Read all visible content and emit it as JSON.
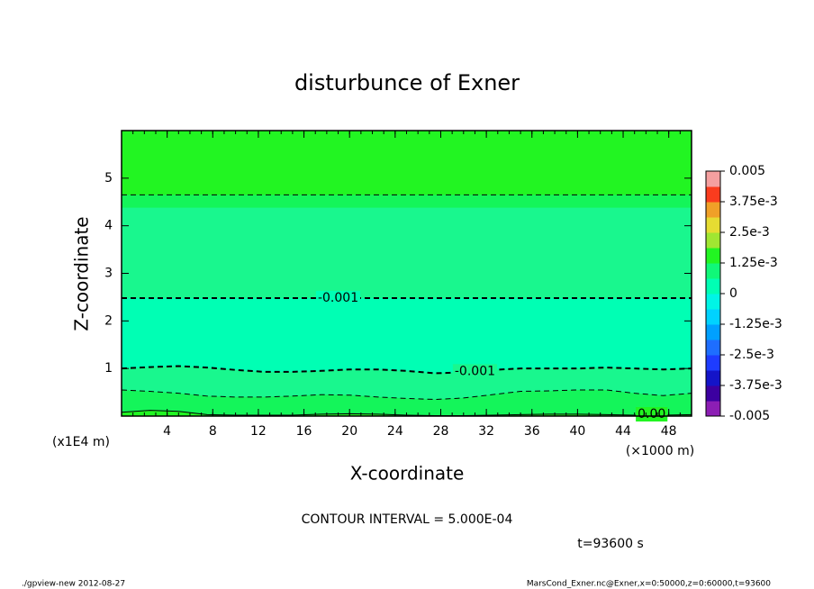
{
  "chart_data": {
    "type": "contour",
    "title": "disturbunce of Exner",
    "xlabel": "X-coordinate",
    "ylabel": "Z-coordinate",
    "xunit": "(×1000 m)",
    "yunit": "(x1E4 m)",
    "xlim": [
      0,
      50
    ],
    "ylim": [
      0,
      6
    ],
    "xticks": [
      4,
      8,
      12,
      16,
      20,
      24,
      28,
      32,
      36,
      40,
      44,
      48
    ],
    "yticks": [
      1,
      2,
      3,
      4,
      5
    ],
    "top_fill": "#22f522",
    "contours": [
      {
        "level": -0.0005,
        "line": "dashed",
        "width": 1,
        "fill": "#14f55a",
        "x": [
          0,
          50
        ],
        "y": [
          4.65,
          4.65
        ]
      },
      {
        "fill": "#19f78e",
        "x": [
          0,
          50
        ],
        "y": [
          4.38,
          4.38
        ]
      },
      {
        "level": -0.001,
        "label": "-0.001",
        "line": "dashed",
        "width": 2,
        "fill": "#00ffb4",
        "x": [
          0,
          50
        ],
        "y": [
          2.48,
          2.48
        ]
      },
      {
        "level": -0.001,
        "label": "-0.001",
        "line": "dashed",
        "width": 2,
        "fill": "#19f78e",
        "x": [
          0,
          2.5,
          5,
          7.5,
          10,
          12.5,
          15,
          17.5,
          20,
          22.5,
          25,
          27.5,
          30,
          32.5,
          35,
          37.5,
          40,
          42.5,
          45,
          47.5,
          50
        ],
        "y": [
          1.0,
          1.03,
          1.05,
          1.02,
          0.97,
          0.93,
          0.93,
          0.95,
          0.98,
          0.98,
          0.95,
          0.9,
          0.92,
          0.97,
          1.0,
          1.0,
          1.0,
          1.02,
          1.0,
          0.98,
          1.0
        ]
      },
      {
        "level": -0.0005,
        "line": "dashed",
        "width": 1,
        "fill": "#14f55a",
        "x": [
          0,
          2.5,
          5,
          7.5,
          10,
          12.5,
          15,
          17.5,
          20,
          22.5,
          25,
          27.5,
          30,
          32.5,
          35,
          37.5,
          40,
          42.5,
          45,
          47.5,
          50
        ],
        "y": [
          0.55,
          0.52,
          0.48,
          0.42,
          0.4,
          0.4,
          0.42,
          0.45,
          0.44,
          0.4,
          0.37,
          0.35,
          0.38,
          0.45,
          0.52,
          0.53,
          0.55,
          0.55,
          0.48,
          0.43,
          0.48
        ]
      },
      {
        "level": 0,
        "label": "0.00",
        "line": "solid",
        "width": 1,
        "fill": "#22f522",
        "x": [
          0,
          2.5,
          5,
          7.5,
          10,
          12.5,
          15,
          17.5,
          20,
          22.5,
          25,
          27.5,
          30,
          32.5,
          35,
          37.5,
          40,
          42.5,
          45,
          47.5,
          50
        ],
        "y": [
          0.08,
          0.12,
          0.1,
          0.03,
          0.02,
          0.02,
          0.02,
          0.04,
          0.05,
          0.04,
          0.02,
          0.01,
          0.01,
          0.02,
          0.03,
          0.04,
          0.04,
          0.03,
          0.02,
          0.02,
          0.03
        ]
      }
    ],
    "colorbar": {
      "clim": [
        -0.005,
        0.005
      ],
      "colors": [
        "#8c1eb4",
        "#3c00a0",
        "#1414c8",
        "#1e3cff",
        "#1e6eff",
        "#00a0ff",
        "#00d2ff",
        "#00f5e6",
        "#00ffb4",
        "#10f878",
        "#22f522",
        "#a0e632",
        "#e6dc32",
        "#f0a028",
        "#fa3c1e",
        "#f5a0a0"
      ],
      "ticks": [
        {
          "value": 0.005,
          "label": "0.005"
        },
        {
          "value": 0.00375,
          "label": "3.75e-3"
        },
        {
          "value": 0.0025,
          "label": "2.5e-3"
        },
        {
          "value": 0.00125,
          "label": "1.25e-3"
        },
        0,
        {
          "value": -0.00125,
          "label": "-1.25e-3"
        },
        {
          "value": -0.0025,
          "label": "-2.5e-3"
        },
        {
          "value": -0.00375,
          "label": "-3.75e-3"
        },
        {
          "value": -0.005,
          "label": "-0.005"
        }
      ]
    },
    "note": "CONTOUR INTERVAL = 5.000E-04",
    "time": "t=93600 s",
    "footer_left": "./gpview-new  2012-08-27",
    "footer_right": "MarsCond_Exner.nc@Exner,x=0:50000,z=0:60000,t=93600"
  }
}
